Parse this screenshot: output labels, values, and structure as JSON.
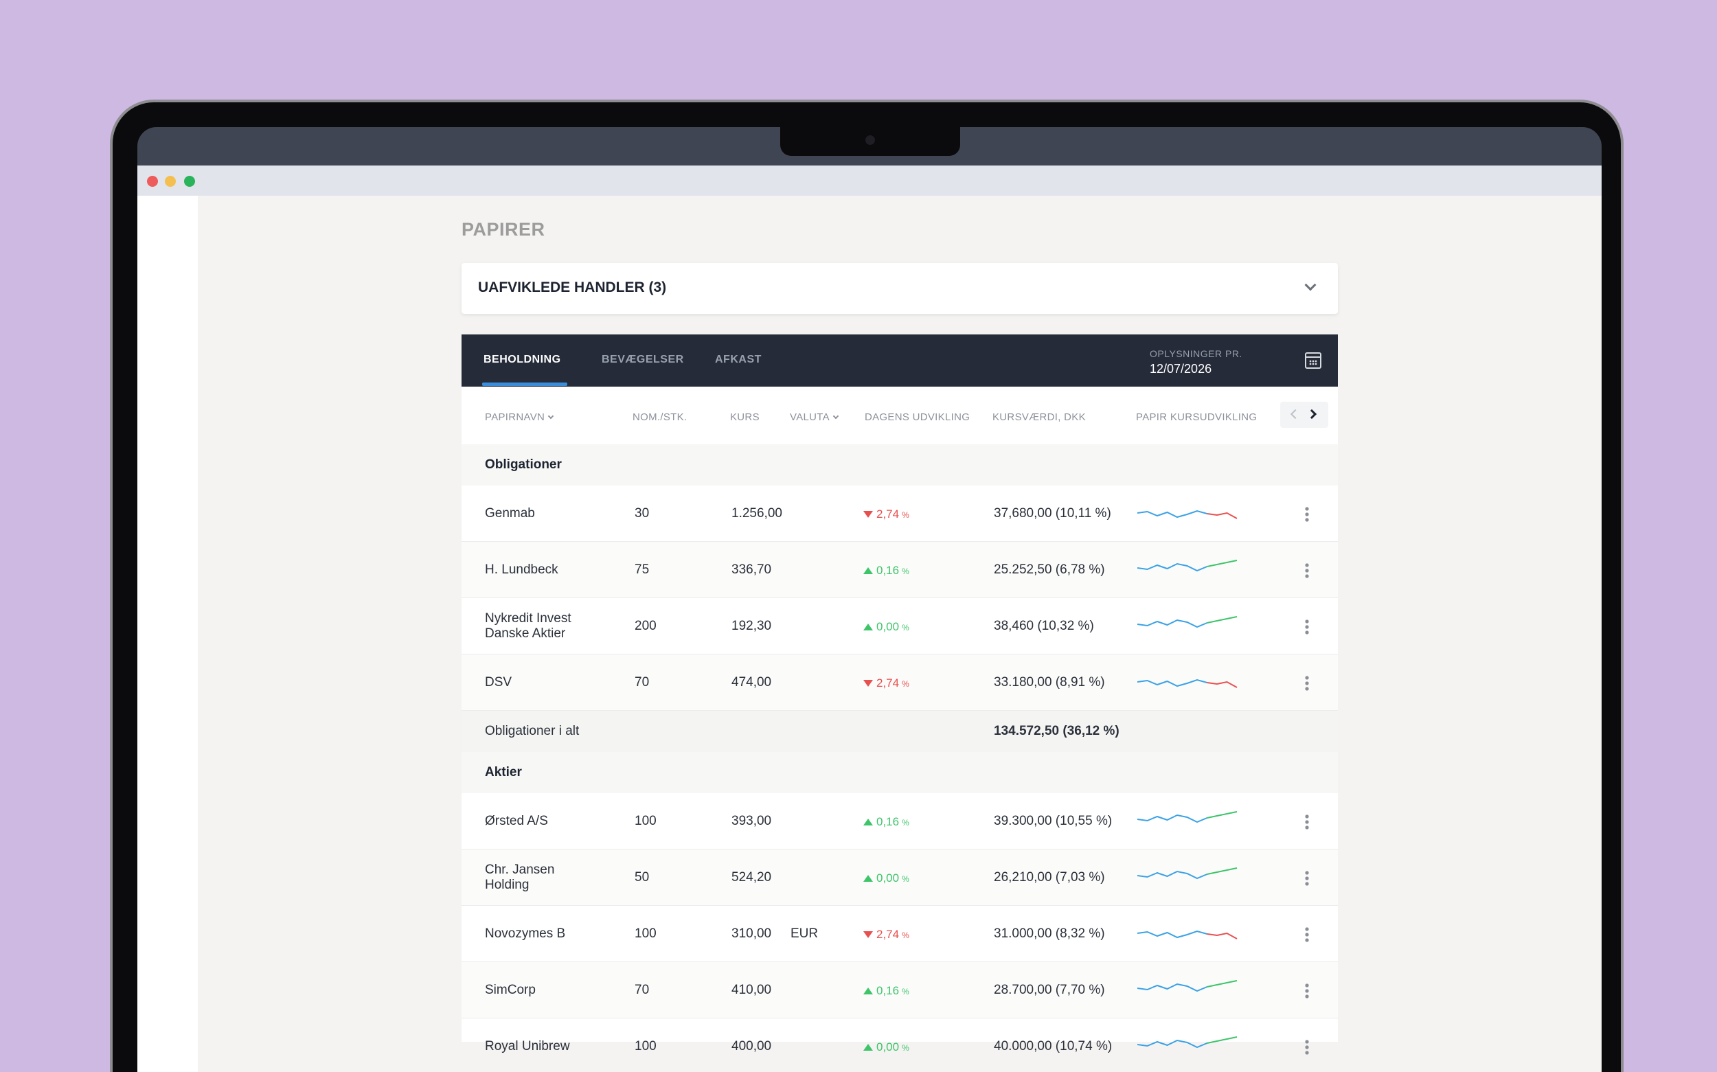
{
  "page": {
    "title": "PAPIRER"
  },
  "pending": {
    "title": "UAFVIKLEDE HANDLER (3)"
  },
  "tabs": [
    {
      "label": "BEHOLDNING",
      "active": true
    },
    {
      "label": "BEVÆGELSER",
      "active": false
    },
    {
      "label": "AFKAST",
      "active": false
    }
  ],
  "info": {
    "label": "OPLYSNINGER PR.",
    "date": "12/07/2026"
  },
  "columns": [
    "PAPIRNAVN",
    "NOM./STK.",
    "KURS",
    "VALUTA",
    "DAGENS UDVIKLING",
    "KURSVÆRDI, DKK",
    "PAPIR KURSUDVIKLING"
  ],
  "colors": {
    "up": "#3ec56a",
    "down": "#e8504f",
    "accent": "#3a8ddb",
    "header": "#252b38",
    "spark_base": "#3ba2e6"
  },
  "groups": [
    {
      "name": "Obligationer",
      "rows": [
        {
          "name": "Genmab",
          "qty": "30",
          "price": "1.256,00",
          "currency": "",
          "change": "2,74",
          "direction": "down",
          "value": "37,680,00 (10,11 %)"
        },
        {
          "name": "H. Lundbeck",
          "qty": "75",
          "price": "336,70",
          "currency": "",
          "change": "0,16",
          "direction": "up",
          "value": "25.252,50 (6,78 %)"
        },
        {
          "name": "Nykredit Invest",
          "name2": "Danske Aktier",
          "qty": "200",
          "price": "192,30",
          "currency": "",
          "change": "0,00",
          "direction": "up",
          "value": "38,460 (10,32 %)"
        },
        {
          "name": "DSV",
          "qty": "70",
          "price": "474,00",
          "currency": "",
          "change": "2,74",
          "direction": "down",
          "value": "33.180,00 (8,91 %)"
        }
      ],
      "total_label": "Obligationer i alt",
      "total_value": "134.572,50 (36,12 %)"
    },
    {
      "name": "Aktier",
      "rows": [
        {
          "name": "Ørsted A/S",
          "qty": "100",
          "price": "393,00",
          "currency": "",
          "change": "0,16",
          "direction": "up",
          "value": "39.300,00 (10,55 %)"
        },
        {
          "name": "Chr. Jansen",
          "name2": "Holding",
          "qty": "50",
          "price": "524,20",
          "currency": "",
          "change": "0,00",
          "direction": "up",
          "value": "26,210,00 (7,03 %)"
        },
        {
          "name": "Novozymes B",
          "qty": "100",
          "price": "310,00",
          "currency": "EUR",
          "change": "2,74",
          "direction": "down",
          "value": "31.000,00 (8,32 %)"
        },
        {
          "name": "SimCorp",
          "qty": "70",
          "price": "410,00",
          "currency": "",
          "change": "0,16",
          "direction": "up",
          "value": "28.700,00 (7,70 %)"
        },
        {
          "name": "Royal Unibrew",
          "qty": "100",
          "price": "400,00",
          "currency": "",
          "change": "0,00",
          "direction": "up",
          "value": "40.000,00 (10,74 %)"
        }
      ]
    }
  ]
}
